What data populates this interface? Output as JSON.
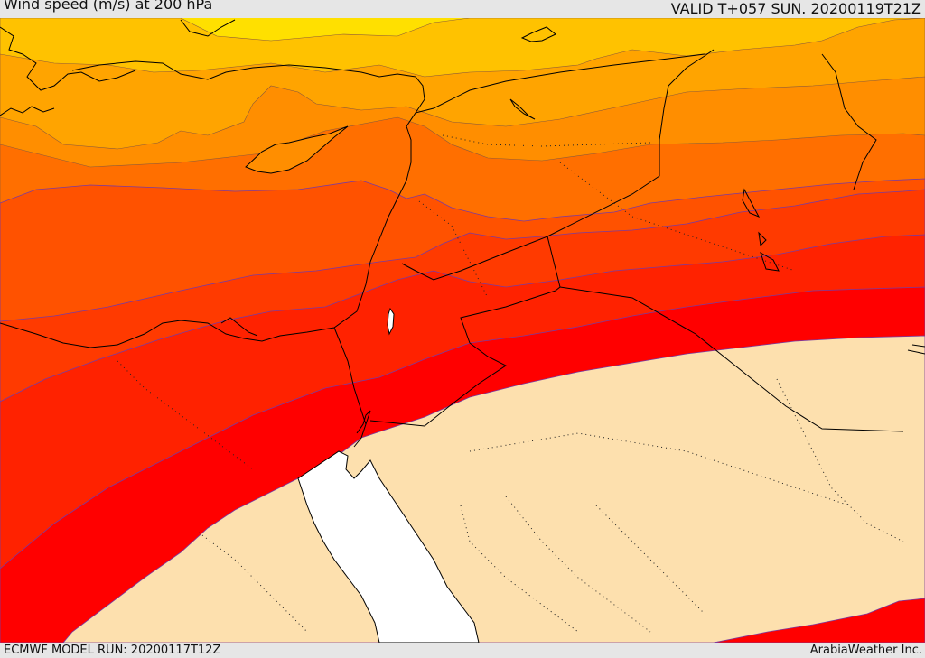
{
  "header": {
    "title": "Wind speed (m/s) at 200 hPa",
    "valid": "VALID T+057 SUN. 20200119T21Z"
  },
  "footer": {
    "model_run": "ECMWF MODEL RUN: 20200117T12Z",
    "credit": "ArabiaWeather Inc."
  },
  "colors": {
    "band_yellow": "#ffe000",
    "band_gold": "#ffc200",
    "band_orange_light": "#ffa400",
    "band_orange": "#ff8e00",
    "band_orange_dark": "#ff6f00",
    "band_red_orange": "#ff5200",
    "band_red_light": "#ff3a00",
    "band_red": "#ff2200",
    "band_core": "#ff0000",
    "calm_area": "#fde0ae",
    "sea": "#ffffff"
  }
}
